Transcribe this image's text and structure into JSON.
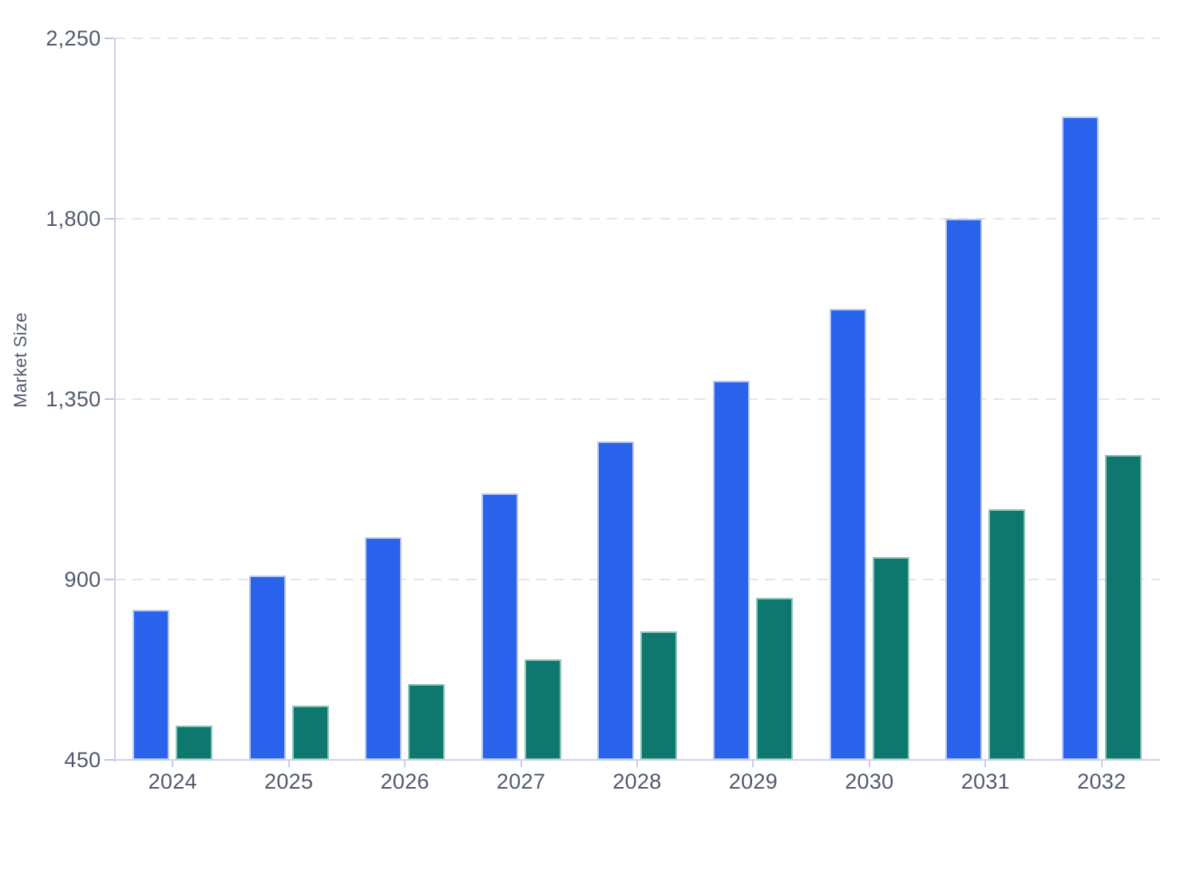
{
  "chart_data": {
    "type": "bar",
    "title": "",
    "xlabel": "",
    "ylabel": "Market Size",
    "categories": [
      "2024",
      "2025",
      "2026",
      "2027",
      "2028",
      "2029",
      "2030",
      "2031",
      "2032"
    ],
    "series": [
      {
        "name": "blue-series",
        "color": "#2a63eb",
        "edge_color": "#b7c8f6",
        "values": [
          825,
          910,
          1005,
          1115,
          1245,
          1395,
          1575,
          1800,
          2055
        ]
      },
      {
        "name": "teal-series",
        "color": "#0f786e",
        "edge_color": "#8ec3b8",
        "values": [
          535,
          585,
          640,
          700,
          770,
          855,
          955,
          1075,
          1210
        ]
      }
    ],
    "ylim": [
      450,
      2250
    ],
    "yticks": [
      450,
      900,
      1350,
      1800,
      2250
    ],
    "ytick_labels": [
      "450",
      "900",
      "1,350",
      "1,800",
      "2,250"
    ],
    "grid": "horizontal-dashed",
    "legend": "none",
    "axis_color": "#c7cfee",
    "grid_color": "#e2e5e9",
    "tick_label_color": "#4e596d"
  }
}
